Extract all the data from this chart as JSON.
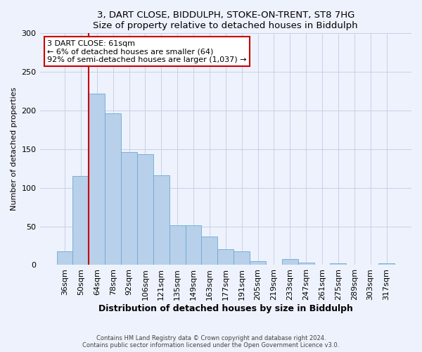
{
  "title": "3, DART CLOSE, BIDDULPH, STOKE-ON-TRENT, ST8 7HG",
  "subtitle": "Size of property relative to detached houses in Biddulph",
  "xlabel": "Distribution of detached houses by size in Biddulph",
  "ylabel": "Number of detached properties",
  "bar_labels": [
    "36sqm",
    "50sqm",
    "64sqm",
    "78sqm",
    "92sqm",
    "106sqm",
    "121sqm",
    "135sqm",
    "149sqm",
    "163sqm",
    "177sqm",
    "191sqm",
    "205sqm",
    "219sqm",
    "233sqm",
    "247sqm",
    "261sqm",
    "275sqm",
    "289sqm",
    "303sqm",
    "317sqm"
  ],
  "bar_values": [
    18,
    115,
    222,
    196,
    146,
    143,
    116,
    51,
    51,
    37,
    20,
    18,
    5,
    0,
    8,
    3,
    0,
    2,
    0,
    0,
    2
  ],
  "bar_color": "#b8d0ea",
  "bar_edge_color": "#6aaad4",
  "vline_color": "#cc0000",
  "vline_x_index": 2,
  "ylim": [
    0,
    300
  ],
  "yticks": [
    0,
    50,
    100,
    150,
    200,
    250,
    300
  ],
  "annotation_title": "3 DART CLOSE: 61sqm",
  "annotation_line1": "← 6% of detached houses are smaller (64)",
  "annotation_line2": "92% of semi-detached houses are larger (1,037) →",
  "annotation_box_color": "#cc0000",
  "footer_line1": "Contains HM Land Registry data © Crown copyright and database right 2024.",
  "footer_line2": "Contains public sector information licensed under the Open Government Licence v3.0.",
  "background_color": "#eef2fc",
  "grid_color": "#c8d0e8"
}
